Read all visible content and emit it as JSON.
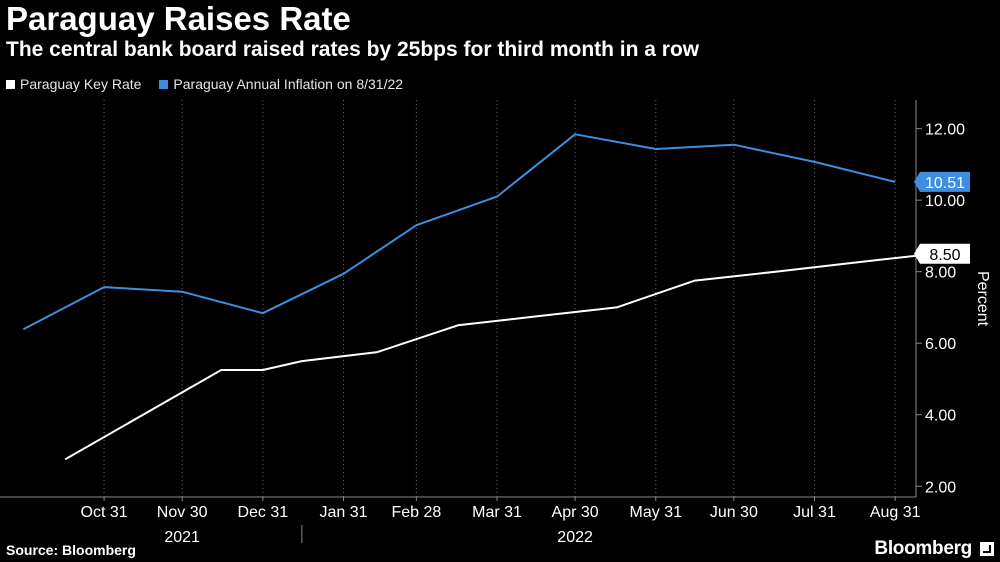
{
  "header": {
    "title": "Paraguay Raises Rate",
    "subtitle": "The central bank board raised rates by 25bps for third month in a row"
  },
  "footer": {
    "source": "Source: Bloomberg",
    "brand": "Bloomberg"
  },
  "colors": {
    "background": "#000000",
    "key_rate": "#ffffff",
    "inflation": "#3d8ee0"
  },
  "chart_data": {
    "type": "line",
    "title": "Paraguay Raises Rate",
    "subtitle": "The central bank board raised rates by 25bps for third month in a row",
    "ylabel": "Percent",
    "xlabel": "",
    "ylim": [
      1.7,
      12.8
    ],
    "y_ticks": [
      "2.00",
      "4.00",
      "6.00",
      "8.00",
      "10.00",
      "12.00"
    ],
    "y_tick_values": [
      2,
      4,
      6,
      8,
      10,
      12
    ],
    "y_axis_side": "right",
    "grid": "vertical dotted",
    "legend_position": "top-left",
    "x_range_days": [
      -40,
      312
    ],
    "x_ticks": [
      {
        "label": "Oct 31",
        "day": 0
      },
      {
        "label": "Nov 30",
        "day": 30
      },
      {
        "label": "Dec 31",
        "day": 61
      },
      {
        "label": "Jan 31",
        "day": 92
      },
      {
        "label": "Feb 28",
        "day": 120
      },
      {
        "label": "Mar 31",
        "day": 151
      },
      {
        "label": "Apr 30",
        "day": 181
      },
      {
        "label": "May 31",
        "day": 212
      },
      {
        "label": "Jun 30",
        "day": 242
      },
      {
        "label": "Jul 31",
        "day": 273
      },
      {
        "label": "Aug 31",
        "day": 304
      }
    ],
    "year_labels": [
      {
        "label": "2021",
        "day": 30
      },
      {
        "label": "2022",
        "day": 181
      }
    ],
    "year_divider_day": 76,
    "series": [
      {
        "name": "Paraguay Key Rate",
        "color": "#ffffff",
        "last_value_label": "8.50",
        "points": [
          {
            "day": -15,
            "value": 2.75
          },
          {
            "day": 45,
            "value": 5.25
          },
          {
            "day": 61,
            "value": 5.25
          },
          {
            "day": 76,
            "value": 5.5
          },
          {
            "day": 105,
            "value": 5.75
          },
          {
            "day": 136,
            "value": 6.5
          },
          {
            "day": 166,
            "value": 6.75
          },
          {
            "day": 197,
            "value": 7.0
          },
          {
            "day": 227,
            "value": 7.75
          },
          {
            "day": 258,
            "value": 8.0
          },
          {
            "day": 288,
            "value": 8.25
          },
          {
            "day": 319,
            "value": 8.5
          }
        ]
      },
      {
        "name": "Paraguay Annual Inflation on 8/31/22",
        "color": "#3d8ee0",
        "last_value_label": "10.51",
        "points": [
          {
            "day": -31,
            "value": 6.39
          },
          {
            "day": 0,
            "value": 7.57
          },
          {
            "day": 30,
            "value": 7.44
          },
          {
            "day": 61,
            "value": 6.84
          },
          {
            "day": 92,
            "value": 7.94
          },
          {
            "day": 120,
            "value": 9.3
          },
          {
            "day": 151,
            "value": 10.1
          },
          {
            "day": 181,
            "value": 11.84
          },
          {
            "day": 212,
            "value": 11.43
          },
          {
            "day": 242,
            "value": 11.55
          },
          {
            "day": 273,
            "value": 11.07
          },
          {
            "day": 304,
            "value": 10.51
          }
        ]
      }
    ]
  }
}
